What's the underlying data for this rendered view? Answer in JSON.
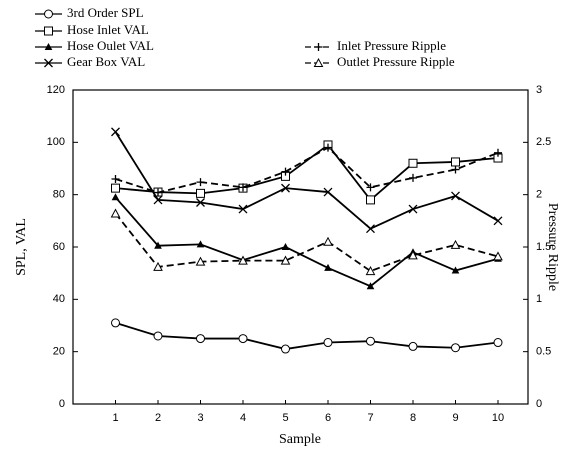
{
  "chart_data": {
    "type": "line",
    "xlabel": "Sample",
    "ylabel": "SPL, VAL",
    "y2label": "Pressure Ripple",
    "categories": [
      "1",
      "2",
      "3",
      "4",
      "5",
      "6",
      "7",
      "8",
      "9",
      "10"
    ],
    "ylim": [
      0,
      120
    ],
    "yticks": [
      0,
      20,
      40,
      60,
      80,
      100,
      120
    ],
    "y2lim": [
      0,
      3
    ],
    "y2ticks": [
      0,
      0.5,
      1,
      1.5,
      2,
      2.5,
      3
    ],
    "series": [
      {
        "name": "3rd Order SPL",
        "color": "#000000",
        "marker": "circle",
        "dash": false,
        "values": [
          31,
          26,
          25,
          25,
          21,
          23.5,
          24,
          22,
          21.5,
          23.5
        ]
      },
      {
        "name": "Hose Inlet VAL",
        "color": "#000000",
        "marker": "square",
        "dash": false,
        "values": [
          82.5,
          81,
          80.5,
          82.5,
          87,
          99,
          78,
          92,
          92.5,
          94
        ]
      },
      {
        "name": "Hose Oulet VAL",
        "color": "#000000",
        "marker": "small-triangle",
        "dash": false,
        "values": [
          79,
          60.5,
          61,
          55,
          60,
          52,
          45,
          58,
          51,
          55.5
        ]
      },
      {
        "name": "Gear Box VAL",
        "color": "#000000",
        "marker": "x",
        "dash": false,
        "values": [
          104,
          78,
          77,
          74.5,
          82.5,
          81,
          67,
          74.5,
          79.5,
          70
        ]
      },
      {
        "name": "Inlet Pressure Ripple",
        "color": "#000000",
        "marker": "plus",
        "dash": true,
        "axis": "y2",
        "values": [
          2.15,
          2.02,
          2.12,
          2.07,
          2.22,
          2.45,
          2.07,
          2.16,
          2.24,
          2.4
        ]
      },
      {
        "name": "Outlet Pressure Ripple",
        "color": "#000000",
        "marker": "triangle",
        "dash": true,
        "axis": "y2",
        "values": [
          1.82,
          1.31,
          1.36,
          1.37,
          1.37,
          1.55,
          1.27,
          1.42,
          1.52,
          1.41
        ]
      }
    ]
  }
}
